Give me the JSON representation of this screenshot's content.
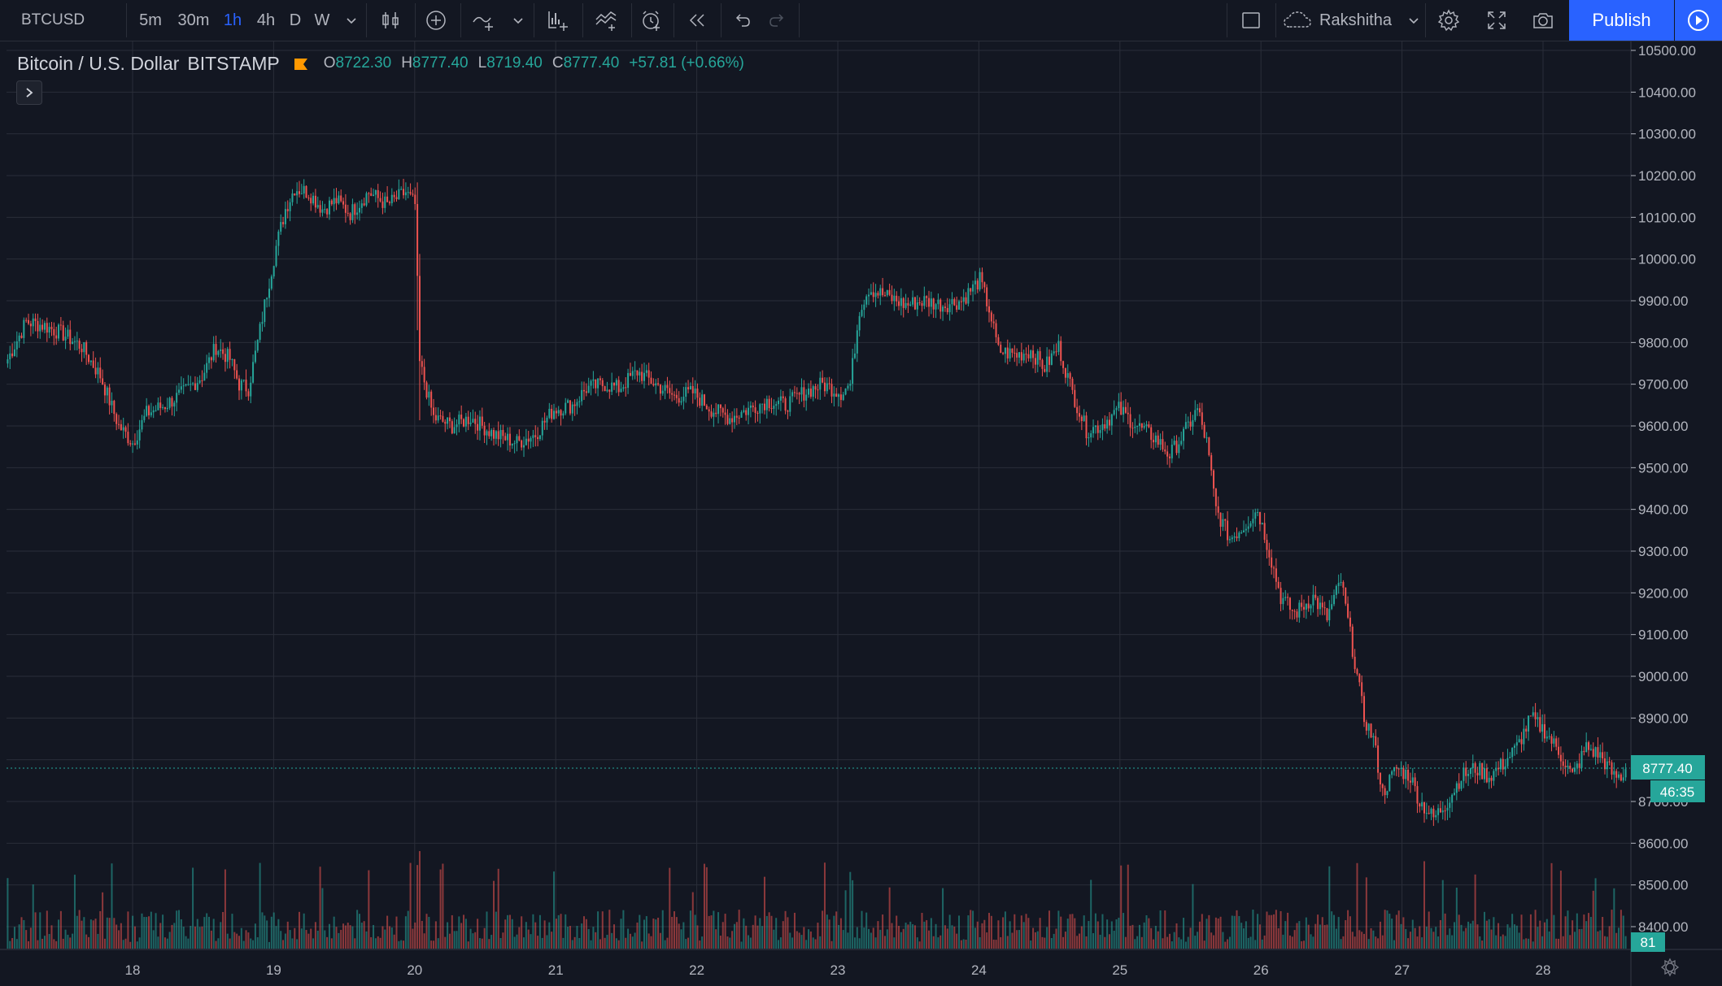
{
  "toolbar": {
    "symbol": "BTCUSD",
    "timeframes": [
      {
        "label": "5m",
        "active": false
      },
      {
        "label": "30m",
        "active": false
      },
      {
        "label": "1h",
        "active": true
      },
      {
        "label": "4h",
        "active": false
      },
      {
        "label": "D",
        "active": false
      },
      {
        "label": "W",
        "active": false
      }
    ],
    "user": "Rakshitha",
    "publish_label": "Publish",
    "accent": "#2962ff"
  },
  "legend": {
    "title": "Bitcoin / U.S. Dollar",
    "exchange": "BITSTAMP",
    "open_key": "O",
    "open": "8722.30",
    "high_key": "H",
    "high": "8777.40",
    "low_key": "L",
    "low": "8719.40",
    "close_key": "C",
    "close": "8777.40",
    "change": "+57.81 (+0.66%)",
    "flag_color": "#ff9800"
  },
  "price_badges": {
    "last_price": "8777.40",
    "countdown": "46:35",
    "volume": "81"
  },
  "colors": {
    "up": "#26a69a",
    "down": "#ef5350",
    "background": "#131722",
    "grid": "#2a2e39"
  },
  "chart_data": {
    "type": "candlestick",
    "y_axis": {
      "ticks": [
        "10500.00",
        "10400.00",
        "10300.00",
        "10200.00",
        "10100.00",
        "10000.00",
        "9900.00",
        "9800.00",
        "9700.00",
        "9600.00",
        "9500.00",
        "9400.00",
        "9300.00",
        "9200.00",
        "9100.00",
        "9000.00",
        "8900.00",
        "8800.00",
        "8700.00",
        "8600.00",
        "8500.00",
        "8400.00"
      ],
      "range": [
        8400,
        10500
      ]
    },
    "x_axis": {
      "ticks": [
        "18",
        "19",
        "20",
        "21",
        "22",
        "23",
        "24",
        "25",
        "26",
        "27",
        "28"
      ]
    },
    "keypoints": [
      [
        0,
        9760
      ],
      [
        8,
        9850
      ],
      [
        16,
        9840
      ],
      [
        24,
        9820
      ],
      [
        32,
        9790
      ],
      [
        40,
        9720
      ],
      [
        48,
        9600
      ],
      [
        54,
        9560
      ],
      [
        60,
        9630
      ],
      [
        68,
        9650
      ],
      [
        76,
        9680
      ],
      [
        84,
        9720
      ],
      [
        90,
        9790
      ],
      [
        96,
        9760
      ],
      [
        100,
        9700
      ],
      [
        104,
        9690
      ],
      [
        108,
        9800
      ],
      [
        112,
        9920
      ],
      [
        116,
        10030
      ],
      [
        120,
        10120
      ],
      [
        124,
        10170
      ],
      [
        130,
        10160
      ],
      [
        136,
        10120
      ],
      [
        142,
        10140
      ],
      [
        148,
        10110
      ],
      [
        156,
        10160
      ],
      [
        164,
        10130
      ],
      [
        172,
        10160
      ],
      [
        176,
        10130
      ],
      [
        178,
        9750
      ],
      [
        184,
        9620
      ],
      [
        192,
        9600
      ],
      [
        200,
        9620
      ],
      [
        210,
        9580
      ],
      [
        220,
        9560
      ],
      [
        228,
        9580
      ],
      [
        236,
        9640
      ],
      [
        244,
        9650
      ],
      [
        250,
        9690
      ],
      [
        258,
        9700
      ],
      [
        264,
        9690
      ],
      [
        272,
        9730
      ],
      [
        280,
        9700
      ],
      [
        288,
        9670
      ],
      [
        296,
        9680
      ],
      [
        304,
        9640
      ],
      [
        312,
        9620
      ],
      [
        320,
        9640
      ],
      [
        328,
        9660
      ],
      [
        336,
        9650
      ],
      [
        344,
        9680
      ],
      [
        352,
        9700
      ],
      [
        360,
        9680
      ],
      [
        364,
        9700
      ],
      [
        368,
        9880
      ],
      [
        372,
        9930
      ],
      [
        380,
        9910
      ],
      [
        388,
        9890
      ],
      [
        396,
        9900
      ],
      [
        404,
        9890
      ],
      [
        412,
        9900
      ],
      [
        420,
        9950
      ],
      [
        424,
        9880
      ],
      [
        428,
        9780
      ],
      [
        436,
        9770
      ],
      [
        442,
        9780
      ],
      [
        448,
        9740
      ],
      [
        454,
        9790
      ],
      [
        460,
        9680
      ],
      [
        466,
        9590
      ],
      [
        472,
        9600
      ],
      [
        480,
        9640
      ],
      [
        488,
        9600
      ],
      [
        496,
        9570
      ],
      [
        502,
        9530
      ],
      [
        508,
        9580
      ],
      [
        514,
        9640
      ],
      [
        518,
        9560
      ],
      [
        522,
        9400
      ],
      [
        528,
        9330
      ],
      [
        534,
        9360
      ],
      [
        540,
        9400
      ],
      [
        544,
        9320
      ],
      [
        550,
        9190
      ],
      [
        556,
        9150
      ],
      [
        564,
        9190
      ],
      [
        570,
        9140
      ],
      [
        576,
        9230
      ],
      [
        580,
        9100
      ],
      [
        586,
        8900
      ],
      [
        590,
        8850
      ],
      [
        594,
        8720
      ],
      [
        600,
        8780
      ],
      [
        606,
        8760
      ],
      [
        610,
        8700
      ],
      [
        616,
        8660
      ],
      [
        622,
        8700
      ],
      [
        628,
        8760
      ],
      [
        634,
        8780
      ],
      [
        640,
        8760
      ],
      [
        646,
        8790
      ],
      [
        652,
        8830
      ],
      [
        658,
        8900
      ],
      [
        664,
        8870
      ],
      [
        670,
        8820
      ],
      [
        676,
        8760
      ],
      [
        682,
        8830
      ],
      [
        688,
        8810
      ],
      [
        694,
        8760
      ]
    ]
  }
}
